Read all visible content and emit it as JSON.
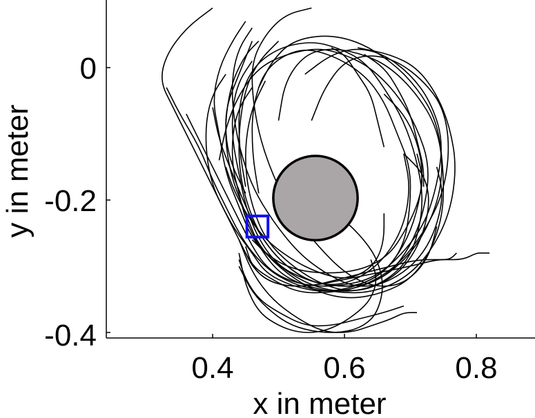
{
  "chart_data": {
    "type": "line",
    "title": "",
    "xlabel": "x in meter",
    "ylabel": "y in meter",
    "xlim": [
      0.25,
      0.89
    ],
    "ylim": [
      -0.405,
      0.097
    ],
    "x_ticks": [
      0.4,
      0.6,
      0.8
    ],
    "y_ticks": [
      0,
      -0.2,
      -0.4
    ],
    "x_tick_labels": [
      "0.4",
      "0.6",
      "0.8"
    ],
    "y_tick_labels": [
      "0",
      "-0.2",
      "-0.4"
    ],
    "grid": false,
    "legend": "none",
    "obstacle": {
      "shape": "circle",
      "cx": 0.556,
      "cy": -0.197,
      "r": 0.064,
      "fill": "#aaa5a6",
      "stroke": "#000000"
    },
    "target_marker": {
      "shape": "square",
      "cx": 0.468,
      "cy": -0.24,
      "half_size": 0.008,
      "stroke": "#1010ee"
    },
    "trajectory_color": "#000000",
    "series": [
      {
        "x": [
          0.4,
          0.36,
          0.33,
          0.32,
          0.34,
          0.37,
          0.4,
          0.43,
          0.46,
          0.48,
          0.52,
          0.57,
          0.62,
          0.66,
          0.69,
          0.7,
          0.7,
          0.68,
          0.66,
          0.63,
          0.58,
          0.53,
          0.48,
          0.46,
          0.46,
          0.47
        ],
        "y": [
          0.09,
          0.06,
          0.02,
          -0.02,
          -0.06,
          -0.12,
          -0.18,
          -0.24,
          -0.28,
          -0.31,
          -0.33,
          -0.34,
          -0.33,
          -0.31,
          -0.27,
          -0.21,
          -0.15,
          -0.1,
          -0.05,
          -0.01,
          0.02,
          0.03,
          0.0,
          -0.06,
          -0.13,
          -0.19
        ]
      },
      {
        "x": [
          0.45,
          0.43,
          0.41,
          0.4,
          0.41,
          0.42,
          0.44,
          0.46,
          0.5,
          0.55,
          0.6,
          0.65,
          0.69,
          0.71,
          0.72,
          0.71,
          0.69,
          0.66,
          0.63,
          0.59,
          0.55,
          0.5,
          0.46,
          0.44,
          0.44,
          0.45
        ],
        "y": [
          0.07,
          0.04,
          0.0,
          -0.05,
          -0.1,
          -0.16,
          -0.21,
          -0.26,
          -0.3,
          -0.33,
          -0.34,
          -0.33,
          -0.3,
          -0.26,
          -0.2,
          -0.14,
          -0.08,
          -0.03,
          0.01,
          0.03,
          0.04,
          0.03,
          0.0,
          -0.05,
          -0.12,
          -0.18
        ]
      },
      {
        "x": [
          0.33,
          0.35,
          0.38,
          0.4,
          0.42,
          0.44,
          0.46,
          0.49,
          0.53,
          0.58,
          0.63,
          0.67,
          0.7,
          0.72,
          0.73,
          0.71,
          0.68,
          0.64,
          0.6,
          0.56,
          0.51,
          0.47,
          0.44,
          0.42,
          0.41
        ],
        "y": [
          -0.03,
          -0.07,
          -0.12,
          -0.17,
          -0.21,
          -0.25,
          -0.28,
          -0.31,
          -0.33,
          -0.34,
          -0.33,
          -0.31,
          -0.27,
          -0.22,
          -0.15,
          -0.09,
          -0.04,
          0.0,
          0.02,
          0.03,
          0.02,
          0.0,
          -0.04,
          -0.09,
          -0.14
        ]
      },
      {
        "x": [
          0.47,
          0.45,
          0.43,
          0.42,
          0.42,
          0.43,
          0.45,
          0.47,
          0.51,
          0.56,
          0.61,
          0.66,
          0.7,
          0.73,
          0.75,
          0.75,
          0.74,
          0.71,
          0.67,
          0.62,
          0.57,
          0.52,
          0.49,
          0.47
        ],
        "y": [
          0.04,
          0.02,
          -0.02,
          -0.07,
          -0.12,
          -0.17,
          -0.22,
          -0.27,
          -0.31,
          -0.34,
          -0.35,
          -0.34,
          -0.32,
          -0.28,
          -0.22,
          -0.15,
          -0.08,
          -0.03,
          0.01,
          0.04,
          0.05,
          0.04,
          0.01,
          -0.03
        ]
      },
      {
        "x": [
          0.46,
          0.44,
          0.43,
          0.43,
          0.44,
          0.45,
          0.47,
          0.5,
          0.54,
          0.58,
          0.63,
          0.67,
          0.71,
          0.74,
          0.75,
          0.74,
          0.71,
          0.67,
          0.63,
          0.58,
          0.54,
          0.51,
          0.5
        ],
        "y": [
          0.01,
          -0.02,
          -0.06,
          -0.11,
          -0.16,
          -0.21,
          -0.26,
          -0.3,
          -0.32,
          -0.33,
          -0.33,
          -0.31,
          -0.27,
          -0.21,
          -0.15,
          -0.09,
          -0.04,
          0.0,
          0.02,
          0.03,
          0.02,
          -0.02,
          -0.08
        ]
      },
      {
        "x": [
          0.42,
          0.4,
          0.39,
          0.39,
          0.4,
          0.42,
          0.44,
          0.46,
          0.49,
          0.53,
          0.58,
          0.63,
          0.68,
          0.72,
          0.75,
          0.76,
          0.75,
          0.72,
          0.68,
          0.64,
          0.6,
          0.57,
          0.55
        ],
        "y": [
          -0.01,
          -0.04,
          -0.08,
          -0.13,
          -0.18,
          -0.22,
          -0.26,
          -0.3,
          -0.32,
          -0.34,
          -0.34,
          -0.33,
          -0.3,
          -0.25,
          -0.19,
          -0.12,
          -0.06,
          -0.02,
          0.01,
          0.02,
          0.01,
          -0.03,
          -0.08
        ]
      },
      {
        "x": [
          0.36,
          0.38,
          0.4,
          0.42,
          0.44,
          0.46,
          0.48,
          0.51,
          0.55,
          0.59,
          0.64,
          0.68,
          0.72,
          0.74,
          0.75,
          0.73,
          0.7,
          0.66,
          0.62,
          0.58,
          0.54
        ],
        "y": [
          -0.07,
          -0.11,
          -0.15,
          -0.19,
          -0.23,
          -0.27,
          -0.3,
          -0.32,
          -0.33,
          -0.33,
          -0.32,
          -0.29,
          -0.24,
          -0.18,
          -0.11,
          -0.05,
          -0.01,
          0.02,
          0.03,
          0.02,
          -0.01
        ]
      },
      {
        "x": [
          0.46,
          0.44,
          0.43,
          0.43,
          0.44,
          0.45,
          0.47,
          0.5,
          0.54,
          0.59,
          0.64,
          0.69,
          0.73,
          0.76,
          0.77,
          0.76,
          0.74,
          0.71,
          0.67,
          0.62
        ],
        "y": [
          -0.03,
          -0.06,
          -0.1,
          -0.15,
          -0.19,
          -0.23,
          -0.27,
          -0.31,
          -0.33,
          -0.34,
          -0.34,
          -0.32,
          -0.28,
          -0.22,
          -0.15,
          -0.09,
          -0.04,
          0.0,
          0.02,
          0.03
        ]
      },
      {
        "x": [
          0.5,
          0.47,
          0.45,
          0.44,
          0.44,
          0.45,
          0.47,
          0.5,
          0.54,
          0.58,
          0.62,
          0.66,
          0.69,
          0.7,
          0.69
        ],
        "y": [
          0.04,
          0.01,
          -0.03,
          -0.09,
          -0.15,
          -0.2,
          -0.25,
          -0.29,
          -0.32,
          -0.33,
          -0.32,
          -0.29,
          -0.24,
          -0.18,
          -0.13
        ]
      },
      {
        "x": [
          0.4,
          0.41,
          0.43,
          0.45,
          0.47,
          0.5,
          0.54,
          0.58,
          0.62,
          0.66,
          0.69,
          0.71,
          0.72,
          0.71,
          0.69,
          0.66
        ],
        "y": [
          -0.06,
          -0.11,
          -0.16,
          -0.21,
          -0.25,
          -0.29,
          -0.32,
          -0.33,
          -0.33,
          -0.31,
          -0.27,
          -0.22,
          -0.16,
          -0.11,
          -0.07,
          -0.04
        ]
      },
      {
        "x": [
          0.46,
          0.44,
          0.43,
          0.43,
          0.44,
          0.46,
          0.49,
          0.53,
          0.57,
          0.61,
          0.65,
          0.69,
          0.72,
          0.74,
          0.75,
          0.74
        ],
        "y": [
          0.06,
          0.03,
          -0.01,
          -0.06,
          -0.12,
          -0.18,
          -0.23,
          -0.28,
          -0.31,
          -0.33,
          -0.33,
          -0.31,
          -0.28,
          -0.24,
          -0.19,
          -0.15
        ]
      },
      {
        "x": [
          0.48,
          0.46,
          0.45,
          0.45,
          0.46,
          0.48,
          0.52,
          0.57,
          0.62,
          0.67,
          0.7,
          0.72,
          0.73,
          0.72,
          0.69
        ],
        "y": [
          -0.02,
          -0.06,
          -0.11,
          -0.16,
          -0.21,
          -0.26,
          -0.3,
          -0.33,
          -0.34,
          -0.32,
          -0.29,
          -0.25,
          -0.2,
          -0.16,
          -0.13
        ]
      },
      {
        "x": [
          0.55,
          0.51,
          0.48,
          0.46,
          0.46,
          0.47,
          0.49,
          0.52,
          0.56,
          0.6,
          0.64,
          0.68,
          0.71,
          0.73,
          0.74
        ],
        "y": [
          0.09,
          0.08,
          0.05,
          0.01,
          -0.04,
          -0.1,
          -0.16,
          -0.22,
          -0.27,
          -0.31,
          -0.33,
          -0.33,
          -0.31,
          -0.28,
          -0.24
        ]
      },
      {
        "x": [
          0.45,
          0.46,
          0.48,
          0.51,
          0.55,
          0.6,
          0.65,
          0.7,
          0.74,
          0.76,
          0.77
        ],
        "y": [
          -0.27,
          -0.3,
          -0.32,
          -0.33,
          -0.33,
          -0.32,
          -0.31,
          -0.3,
          -0.29,
          -0.29,
          -0.28
        ]
      },
      {
        "x": [
          0.44,
          0.45,
          0.47,
          0.5,
          0.54,
          0.58,
          0.62,
          0.66,
          0.69
        ],
        "y": [
          -0.29,
          -0.32,
          -0.35,
          -0.37,
          -0.39,
          -0.39,
          -0.38,
          -0.37,
          -0.36
        ]
      },
      {
        "x": [
          0.45,
          0.46,
          0.48,
          0.51,
          0.55,
          0.59,
          0.63,
          0.67,
          0.71,
          0.75,
          0.78,
          0.8,
          0.81,
          0.82
        ],
        "y": [
          -0.28,
          -0.3,
          -0.32,
          -0.33,
          -0.33,
          -0.32,
          -0.31,
          -0.3,
          -0.29,
          -0.29,
          -0.29,
          -0.28,
          -0.28,
          -0.28
        ]
      },
      {
        "x": [
          0.44,
          0.46,
          0.49,
          0.53,
          0.57,
          0.61,
          0.64,
          0.67,
          0.69,
          0.71
        ],
        "y": [
          -0.26,
          -0.31,
          -0.35,
          -0.38,
          -0.4,
          -0.4,
          -0.39,
          -0.38,
          -0.37,
          -0.37
        ]
      },
      {
        "x": [
          0.44,
          0.46,
          0.49,
          0.52,
          0.56,
          0.6,
          0.63,
          0.65,
          0.66,
          0.65,
          0.63,
          0.6,
          0.57
        ],
        "y": [
          -0.3,
          -0.34,
          -0.37,
          -0.39,
          -0.4,
          -0.4,
          -0.39,
          -0.37,
          -0.33,
          -0.29,
          -0.26,
          -0.23,
          -0.21
        ]
      },
      {
        "x": [
          0.46,
          0.48,
          0.51,
          0.55,
          0.6,
          0.64,
          0.67,
          0.69,
          0.71,
          0.72,
          0.71
        ],
        "y": [
          -0.26,
          -0.28,
          -0.3,
          -0.31,
          -0.31,
          -0.3,
          -0.28,
          -0.25,
          -0.21,
          -0.17,
          -0.13
        ]
      },
      {
        "x": [
          0.44,
          0.45,
          0.47,
          0.5,
          0.53,
          0.56,
          0.59,
          0.62,
          0.64,
          0.65,
          0.64
        ],
        "y": [
          -0.28,
          -0.33,
          -0.37,
          -0.39,
          -0.4,
          -0.4,
          -0.39,
          -0.37,
          -0.35,
          -0.32,
          -0.29
        ]
      },
      {
        "x": [
          0.42,
          0.43,
          0.45,
          0.48,
          0.52,
          0.56,
          0.6,
          0.63,
          0.65,
          0.66,
          0.66
        ],
        "y": [
          -0.15,
          -0.18,
          -0.22,
          -0.26,
          -0.29,
          -0.31,
          -0.32,
          -0.31,
          -0.29,
          -0.26,
          -0.22
        ]
      },
      {
        "x": [
          0.63,
          0.66,
          0.68,
          0.7,
          0.71,
          0.72,
          0.72
        ],
        "y": [
          0.02,
          0.0,
          -0.03,
          -0.07,
          -0.11,
          -0.15,
          -0.18
        ]
      },
      {
        "x": [
          0.58,
          0.6,
          0.62,
          0.64,
          0.65,
          0.66
        ],
        "y": [
          0.03,
          0.02,
          -0.01,
          -0.04,
          -0.08,
          -0.12
        ]
      },
      {
        "x": [
          0.46,
          0.44,
          0.42,
          0.42,
          0.43,
          0.45
        ],
        "y": [
          0.04,
          -0.01,
          -0.06,
          -0.11,
          -0.15,
          -0.19
        ]
      }
    ]
  }
}
